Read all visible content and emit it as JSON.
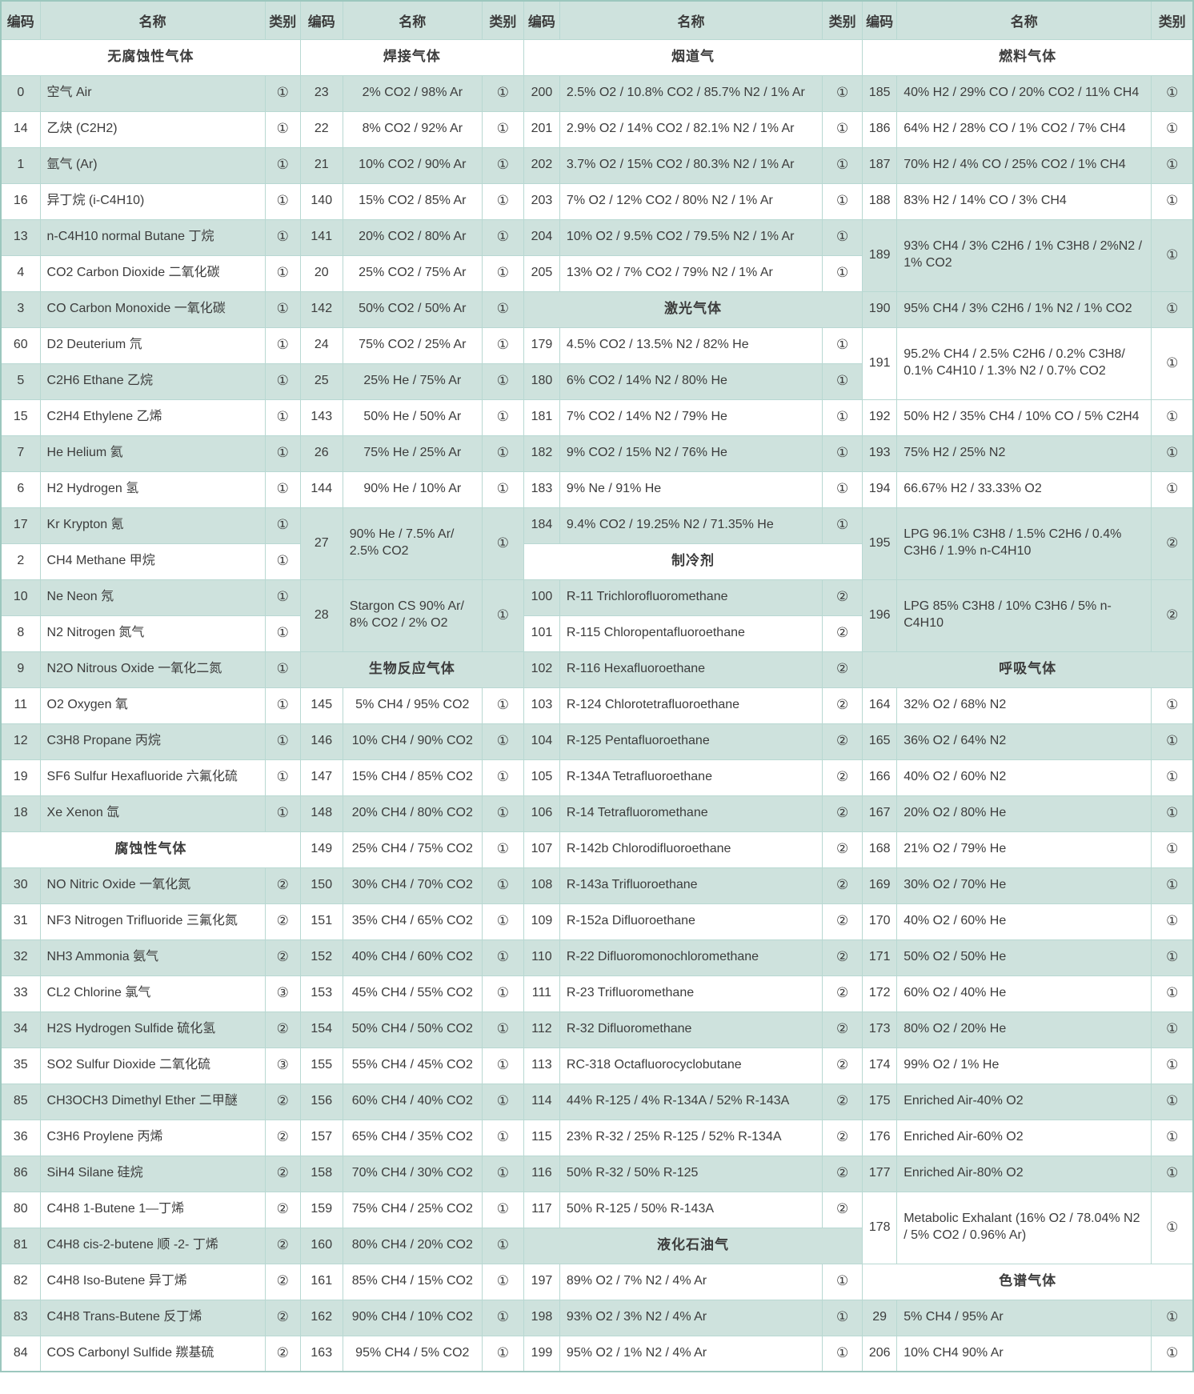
{
  "colors": {
    "row_green": "#cee2dd",
    "row_white": "#ffffff",
    "grid_border": "#b8d8d2",
    "outer_border": "#9cc7be",
    "text": "#3c3c3c"
  },
  "table": {
    "header": {
      "code": "编码",
      "name": "名称",
      "category": "类别"
    },
    "section_titles": [
      "无腐蚀性气体",
      "焊接气体",
      "烟道气",
      "燃料气体",
      "激光气体",
      "制冷剂",
      "生物反应气体",
      "呼吸气体",
      "腐蚀性气体",
      "液化石油气",
      "色谱气体"
    ],
    "rows": [
      [
        {
          "section": "无腐蚀性气体"
        },
        {
          "section": "焊接气体"
        },
        {
          "section": "烟道气"
        },
        {
          "section": "燃料气体"
        }
      ],
      [
        {
          "code": "0",
          "name": "空气 Air",
          "cat": "①"
        },
        {
          "code": "23",
          "name": "2% CO2 / 98% Ar",
          "cat": "①"
        },
        {
          "code": "200",
          "name": "2.5% O2 / 10.8% CO2 / 85.7% N2 / 1% Ar",
          "cat": "①"
        },
        {
          "code": "185",
          "name": "40% H2 / 29% CO / 20% CO2 / 11% CH4",
          "cat": "①"
        }
      ],
      [
        {
          "code": "14",
          "name": "乙炔 (C2H2)",
          "cat": "①"
        },
        {
          "code": "22",
          "name": "8% CO2 / 92% Ar",
          "cat": "①"
        },
        {
          "code": "201",
          "name": "2.9% O2 / 14% CO2 / 82.1% N2 / 1% Ar",
          "cat": "①"
        },
        {
          "code": "186",
          "name": "64% H2 / 28% CO / 1% CO2 / 7% CH4",
          "cat": "①"
        }
      ],
      [
        {
          "code": "1",
          "name": "氩气 (Ar)",
          "cat": "①"
        },
        {
          "code": "21",
          "name": "10% CO2 / 90% Ar",
          "cat": "①"
        },
        {
          "code": "202",
          "name": "3.7% O2 / 15% CO2 / 80.3% N2 / 1% Ar",
          "cat": "①"
        },
        {
          "code": "187",
          "name": "70% H2 / 4% CO / 25% CO2 / 1% CH4",
          "cat": "①"
        }
      ],
      [
        {
          "code": "16",
          "name": "异丁烷 (i-C4H10)",
          "cat": "①"
        },
        {
          "code": "140",
          "name": "15% CO2 / 85% Ar",
          "cat": "①"
        },
        {
          "code": "203",
          "name": "7% O2 / 12% CO2 / 80% N2 / 1% Ar",
          "cat": "①"
        },
        {
          "code": "188",
          "name": "83% H2 / 14% CO / 3% CH4",
          "cat": "①"
        }
      ],
      [
        {
          "code": "13",
          "name": "n-C4H10 normal Butane 丁烷",
          "cat": "①"
        },
        {
          "code": "141",
          "name": "20% CO2 / 80% Ar",
          "cat": "①"
        },
        {
          "code": "204",
          "name": "10% O2 / 9.5% CO2 / 79.5% N2 / 1% Ar",
          "cat": "①"
        },
        {
          "code": "189",
          "name": "93% CH4 / 3% C2H6 / 1% C3H8 / 2%N2 / 1% CO2",
          "cat": "①",
          "span": 2
        }
      ],
      [
        {
          "code": "4",
          "name": "CO2 Carbon Dioxide 二氧化碳",
          "cat": "①"
        },
        {
          "code": "20",
          "name": "25% CO2 / 75% Ar",
          "cat": "①"
        },
        {
          "code": "205",
          "name": "13% O2 / 7% CO2 / 79% N2 / 1% Ar",
          "cat": "①"
        },
        null
      ],
      [
        {
          "code": "3",
          "name": "CO Carbon Monoxide 一氧化碳",
          "cat": "①"
        },
        {
          "code": "142",
          "name": "50% CO2 / 50% Ar",
          "cat": "①"
        },
        {
          "section": "激光气体"
        },
        {
          "code": "190",
          "name": "95% CH4 / 3% C2H6 / 1% N2 / 1% CO2",
          "cat": "①"
        }
      ],
      [
        {
          "code": "60",
          "name": "D2 Deuterium 氘",
          "cat": "①"
        },
        {
          "code": "24",
          "name": "75% CO2 / 25% Ar",
          "cat": "①"
        },
        {
          "code": "179",
          "name": "4.5% CO2 / 13.5% N2 / 82% He",
          "cat": "①"
        },
        {
          "code": "191",
          "name": "95.2% CH4 / 2.5% C2H6 / 0.2% C3H8/ 0.1% C4H10 / 1.3% N2 / 0.7% CO2",
          "cat": "①",
          "span": 2
        }
      ],
      [
        {
          "code": "5",
          "name": "C2H6 Ethane 乙烷",
          "cat": "①"
        },
        {
          "code": "25",
          "name": "25% He / 75% Ar",
          "cat": "①"
        },
        {
          "code": "180",
          "name": "6% CO2 / 14% N2 / 80% He",
          "cat": "①"
        },
        null
      ],
      [
        {
          "code": "15",
          "name": "C2H4 Ethylene 乙烯",
          "cat": "①"
        },
        {
          "code": "143",
          "name": "50% He / 50% Ar",
          "cat": "①"
        },
        {
          "code": "181",
          "name": "7% CO2 / 14% N2 / 79% He",
          "cat": "①"
        },
        {
          "code": "192",
          "name": "50% H2 / 35% CH4 / 10% CO / 5% C2H4",
          "cat": "①"
        }
      ],
      [
        {
          "code": "7",
          "name": "He Helium 氦",
          "cat": "①"
        },
        {
          "code": "26",
          "name": "75% He / 25% Ar",
          "cat": "①"
        },
        {
          "code": "182",
          "name": "9% CO2 / 15% N2 / 76% He",
          "cat": "①"
        },
        {
          "code": "193",
          "name": "75% H2 / 25% N2",
          "cat": "①"
        }
      ],
      [
        {
          "code": "6",
          "name": "H2 Hydrogen 氢",
          "cat": "①"
        },
        {
          "code": "144",
          "name": "90% He / 10% Ar",
          "cat": "①"
        },
        {
          "code": "183",
          "name": "9% Ne / 91% He",
          "cat": "①"
        },
        {
          "code": "194",
          "name": "66.67% H2 / 33.33% O2",
          "cat": "①"
        }
      ],
      [
        {
          "code": "17",
          "name": "Kr Krypton 氪",
          "cat": "①"
        },
        {
          "code": "27",
          "name": "90% He / 7.5% Ar/ 2.5% CO2",
          "cat": "①",
          "span": 2
        },
        {
          "code": "184",
          "name": "9.4% CO2 / 19.25% N2 / 71.35% He",
          "cat": "①"
        },
        {
          "code": "195",
          "name": "LPG 96.1% C3H8 / 1.5% C2H6 / 0.4% C3H6 / 1.9% n-C4H10",
          "cat": "②",
          "span": 2
        }
      ],
      [
        {
          "code": "2",
          "name": "CH4 Methane 甲烷",
          "cat": "①"
        },
        null,
        {
          "section": "制冷剂"
        },
        null
      ],
      [
        {
          "code": "10",
          "name": "Ne Neon 氖",
          "cat": "①"
        },
        {
          "code": "28",
          "name": "Stargon CS 90% Ar/ 8% CO2 / 2% O2",
          "cat": "①",
          "span": 2
        },
        {
          "code": "100",
          "name": "R-11 Trichlorofluoromethane",
          "cat": "②"
        },
        {
          "code": "196",
          "name": "LPG 85% C3H8 / 10% C3H6 / 5% n-C4H10",
          "cat": "②",
          "span": 2
        }
      ],
      [
        {
          "code": "8",
          "name": "N2 Nitrogen 氮气",
          "cat": "①"
        },
        null,
        {
          "code": "101",
          "name": "R-115 Chloropentafluoroethane",
          "cat": "②"
        },
        null
      ],
      [
        {
          "code": "9",
          "name": "N2O Nitrous Oxide 一氧化二氮",
          "cat": "①"
        },
        {
          "section": "生物反应气体"
        },
        {
          "code": "102",
          "name": "R-116 Hexafluoroethane",
          "cat": "②"
        },
        {
          "section": "呼吸气体"
        }
      ],
      [
        {
          "code": "11",
          "name": "O2 Oxygen 氧",
          "cat": "①"
        },
        {
          "code": "145",
          "name": "5% CH4 / 95% CO2",
          "cat": "①"
        },
        {
          "code": "103",
          "name": "R-124 Chlorotetrafluoroethane",
          "cat": "②"
        },
        {
          "code": "164",
          "name": "32% O2 / 68% N2",
          "cat": "①"
        }
      ],
      [
        {
          "code": "12",
          "name": "C3H8 Propane 丙烷",
          "cat": "①"
        },
        {
          "code": "146",
          "name": "10% CH4 / 90% CO2",
          "cat": "①"
        },
        {
          "code": "104",
          "name": "R-125 Pentafluoroethane",
          "cat": "②"
        },
        {
          "code": "165",
          "name": "36% O2 / 64% N2",
          "cat": "①"
        }
      ],
      [
        {
          "code": "19",
          "name": "SF6 Sulfur Hexafluoride 六氟化硫",
          "cat": "①"
        },
        {
          "code": "147",
          "name": "15% CH4 / 85% CO2",
          "cat": "①"
        },
        {
          "code": "105",
          "name": "R-134A Tetrafluoroethane",
          "cat": "②"
        },
        {
          "code": "166",
          "name": "40% O2 / 60% N2",
          "cat": "①"
        }
      ],
      [
        {
          "code": "18",
          "name": "Xe Xenon 氙",
          "cat": "①"
        },
        {
          "code": "148",
          "name": "20% CH4 / 80% CO2",
          "cat": "①"
        },
        {
          "code": "106",
          "name": "R-14 Tetrafluoromethane",
          "cat": "②"
        },
        {
          "code": "167",
          "name": "20% O2 / 80% He",
          "cat": "①"
        }
      ],
      [
        {
          "section": "腐蚀性气体"
        },
        {
          "code": "149",
          "name": "25% CH4 / 75% CO2",
          "cat": "①"
        },
        {
          "code": "107",
          "name": "R-142b Chlorodifluoroethane",
          "cat": "②"
        },
        {
          "code": "168",
          "name": "21% O2 / 79% He",
          "cat": "①"
        }
      ],
      [
        {
          "code": "30",
          "name": "NO Nitric Oxide 一氧化氮",
          "cat": "②"
        },
        {
          "code": "150",
          "name": "30% CH4 / 70% CO2",
          "cat": "①"
        },
        {
          "code": "108",
          "name": "R-143a Trifluoroethane",
          "cat": "②"
        },
        {
          "code": "169",
          "name": "30% O2 / 70% He",
          "cat": "①"
        }
      ],
      [
        {
          "code": "31",
          "name": "NF3 Nitrogen Trifluoride 三氟化氮",
          "cat": "②"
        },
        {
          "code": "151",
          "name": "35% CH4 / 65% CO2",
          "cat": "①"
        },
        {
          "code": "109",
          "name": "R-152a Difluoroethane",
          "cat": "②"
        },
        {
          "code": "170",
          "name": "40% O2 / 60% He",
          "cat": "①"
        }
      ],
      [
        {
          "code": "32",
          "name": "NH3 Ammonia 氨气",
          "cat": "②"
        },
        {
          "code": "152",
          "name": "40% CH4 / 60% CO2",
          "cat": "①"
        },
        {
          "code": "110",
          "name": "R-22 Difluoromonochloromethane",
          "cat": "②"
        },
        {
          "code": "171",
          "name": "50% O2 / 50% He",
          "cat": "①"
        }
      ],
      [
        {
          "code": "33",
          "name": "CL2 Chlorine 氯气",
          "cat": "③"
        },
        {
          "code": "153",
          "name": "45% CH4 / 55% CO2",
          "cat": "①"
        },
        {
          "code": "111",
          "name": "R-23 Trifluoromethane",
          "cat": "②"
        },
        {
          "code": "172",
          "name": "60% O2 / 40% He",
          "cat": "①"
        }
      ],
      [
        {
          "code": "34",
          "name": "H2S Hydrogen Sulfide 硫化氢",
          "cat": "②"
        },
        {
          "code": "154",
          "name": "50% CH4 / 50% CO2",
          "cat": "①"
        },
        {
          "code": "112",
          "name": "R-32 Difluoromethane",
          "cat": "②"
        },
        {
          "code": "173",
          "name": "80% O2 / 20% He",
          "cat": "①"
        }
      ],
      [
        {
          "code": "35",
          "name": "SO2 Sulfur Dioxide 二氧化硫",
          "cat": "③"
        },
        {
          "code": "155",
          "name": "55% CH4 / 45% CO2",
          "cat": "①"
        },
        {
          "code": "113",
          "name": "RC-318 Octafluorocyclobutane",
          "cat": "②"
        },
        {
          "code": "174",
          "name": "99% O2 / 1% He",
          "cat": "①"
        }
      ],
      [
        {
          "code": "85",
          "name": "CH3OCH3 Dimethyl Ether 二甲醚",
          "cat": "②"
        },
        {
          "code": "156",
          "name": "60% CH4 / 40% CO2",
          "cat": "①"
        },
        {
          "code": "114",
          "name": "44% R-125 / 4% R-134A / 52% R-143A",
          "cat": "②"
        },
        {
          "code": "175",
          "name": "Enriched Air-40% O2",
          "cat": "①"
        }
      ],
      [
        {
          "code": "36",
          "name": "C3H6 Proylene 丙烯",
          "cat": "②"
        },
        {
          "code": "157",
          "name": "65% CH4 / 35% CO2",
          "cat": "①"
        },
        {
          "code": "115",
          "name": "23% R-32 / 25% R-125 / 52% R-134A",
          "cat": "②"
        },
        {
          "code": "176",
          "name": "Enriched Air-60% O2",
          "cat": "①"
        }
      ],
      [
        {
          "code": "86",
          "name": "SiH4 Silane 硅烷",
          "cat": "②"
        },
        {
          "code": "158",
          "name": "70% CH4 / 30% CO2",
          "cat": "①"
        },
        {
          "code": "116",
          "name": "50% R-32 / 50% R-125",
          "cat": "②"
        },
        {
          "code": "177",
          "name": "Enriched Air-80% O2",
          "cat": "①"
        }
      ],
      [
        {
          "code": "80",
          "name": "C4H8 1-Butene 1—丁烯",
          "cat": "②"
        },
        {
          "code": "159",
          "name": "75% CH4 / 25% CO2",
          "cat": "①"
        },
        {
          "code": "117",
          "name": "50% R-125 / 50% R-143A",
          "cat": "②"
        },
        {
          "code": "178",
          "name": "Metabolic Exhalant (16% O2 / 78.04% N2 / 5% CO2 / 0.96% Ar)",
          "cat": "①",
          "span": 2
        }
      ],
      [
        {
          "code": "81",
          "name": "C4H8 cis-2-butene 顺 -2- 丁烯",
          "cat": "②"
        },
        {
          "code": "160",
          "name": "80% CH4 / 20% CO2",
          "cat": "①"
        },
        {
          "section": "液化石油气"
        },
        null
      ],
      [
        {
          "code": "82",
          "name": "C4H8 Iso-Butene 异丁烯",
          "cat": "②"
        },
        {
          "code": "161",
          "name": "85% CH4 / 15% CO2",
          "cat": "①"
        },
        {
          "code": "197",
          "name": "89% O2 / 7% N2 / 4% Ar",
          "cat": "①"
        },
        {
          "section": "色谱气体"
        }
      ],
      [
        {
          "code": "83",
          "name": "C4H8 Trans-Butene 反丁烯",
          "cat": "②"
        },
        {
          "code": "162",
          "name": "90% CH4 / 10% CO2",
          "cat": "①"
        },
        {
          "code": "198",
          "name": "93% O2 / 3% N2 / 4% Ar",
          "cat": "①"
        },
        {
          "code": "29",
          "name": "5% CH4 / 95% Ar",
          "cat": "①"
        }
      ],
      [
        {
          "code": "84",
          "name": "COS Carbonyl Sulfide 羰基硫",
          "cat": "②"
        },
        {
          "code": "163",
          "name": "95% CH4 / 5% CO2",
          "cat": "①"
        },
        {
          "code": "199",
          "name": "95% O2 / 1% N2 / 4% Ar",
          "cat": "①"
        },
        {
          "code": "206",
          "name": "10% CH4 90% Ar",
          "cat": "①"
        }
      ]
    ]
  }
}
